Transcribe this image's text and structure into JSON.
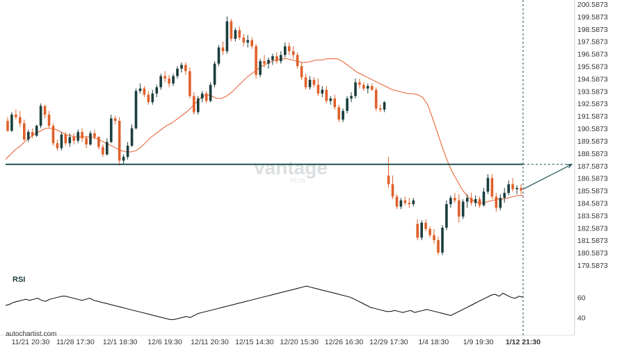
{
  "colors": {
    "up": "#1a3d3d",
    "down": "#e0602a",
    "ma": "#e8734a",
    "level": "#1e4f52",
    "rsi": "#000000",
    "axis": "#333333",
    "watermark": "#d8dcde"
  },
  "watermark": {
    "text": "vantage",
    "sub": "PLUS"
  },
  "source_label": "autochartist.com",
  "chart_data": [
    {
      "type": "candlestick",
      "price_ticks": [
        "200.5873",
        "199.5873",
        "198.5873",
        "197.5873",
        "196.5873",
        "195.5873",
        "194.5873",
        "193.5873",
        "192.5873",
        "191.5873",
        "190.5873",
        "189.5873",
        "188.5873",
        "187.5873",
        "186.5873",
        "185.5873",
        "184.5873",
        "183.5873",
        "182.5873",
        "181.5873",
        "180.5873",
        "179.5873"
      ],
      "ylim": [
        179.0,
        200.6
      ],
      "x_ticks": [
        "11/21 20:30",
        "11/28 17:30",
        "12/1 18:30",
        "12/6 19:30",
        "12/11 20:30",
        "12/15 14:30",
        "12/20 15:30",
        "12/26 16:30",
        "12/29 17:30",
        "1/4 18:30",
        "1/9 19:30",
        "1/12 21:30"
      ],
      "support_resistance_level": 187.7,
      "projection": {
        "from": 185.7,
        "to": 187.7
      },
      "moving_average": [
        188.1,
        188.5,
        188.9,
        189.2,
        189.6,
        189.9,
        190.2,
        190.4,
        190.6,
        190.6,
        190.5,
        190.3,
        190.1,
        190.0,
        189.9,
        189.9,
        189.9,
        189.9,
        189.8,
        189.6,
        189.4,
        189.2,
        189.0,
        188.8,
        188.7,
        188.7,
        188.8,
        189.1,
        189.5,
        189.9,
        190.2,
        190.5,
        190.8,
        191.0,
        191.3,
        191.6,
        191.9,
        192.3,
        192.7,
        193.1,
        193.3,
        193.2,
        193.0,
        193.0,
        193.2,
        193.5,
        193.9,
        194.3,
        194.7,
        195.0,
        195.3,
        195.6,
        195.8,
        196.0,
        196.1,
        196.2,
        196.2,
        196.1,
        196.0,
        195.9,
        195.9,
        196.0,
        196.1,
        196.1,
        196.2,
        196.2,
        196.2,
        196.0,
        195.7,
        195.4,
        195.1,
        194.9,
        194.7,
        194.5,
        194.3,
        194.1,
        193.9,
        193.7,
        193.6,
        193.5,
        193.4,
        193.4,
        193.3,
        193.1,
        192.5,
        191.4,
        190.2,
        189.0,
        187.9,
        187.0,
        186.3,
        185.6,
        185.1,
        184.8,
        184.6,
        184.6,
        184.7,
        184.8,
        184.9,
        184.9,
        185.0,
        185.1,
        185.2,
        185.2
      ],
      "candles": [
        [
          191.2,
          191.5,
          190.3,
          190.4
        ],
        [
          190.4,
          191.9,
          190.3,
          191.7
        ],
        [
          191.7,
          192.1,
          191.3,
          191.5
        ],
        [
          191.5,
          192.0,
          190.7,
          191.0
        ],
        [
          191.0,
          191.3,
          189.6,
          189.7
        ],
        [
          189.7,
          190.5,
          189.5,
          190.3
        ],
        [
          190.3,
          190.6,
          189.8,
          190.0
        ],
        [
          190.0,
          190.9,
          189.9,
          190.8
        ],
        [
          190.8,
          192.6,
          190.6,
          192.4
        ],
        [
          192.4,
          192.5,
          191.4,
          191.7
        ],
        [
          191.7,
          192.0,
          190.6,
          190.8
        ],
        [
          190.8,
          191.0,
          189.2,
          189.4
        ],
        [
          189.4,
          189.7,
          188.8,
          189.0
        ],
        [
          189.0,
          190.3,
          188.8,
          190.1
        ],
        [
          190.1,
          190.3,
          189.2,
          189.4
        ],
        [
          189.4,
          190.2,
          189.1,
          189.9
        ],
        [
          189.9,
          190.2,
          189.3,
          189.6
        ],
        [
          189.6,
          190.5,
          189.4,
          190.3
        ],
        [
          190.3,
          190.6,
          189.5,
          189.8
        ],
        [
          189.8,
          190.0,
          189.0,
          189.3
        ],
        [
          189.3,
          190.4,
          189.2,
          190.2
        ],
        [
          190.2,
          190.5,
          189.7,
          189.9
        ],
        [
          189.9,
          190.0,
          188.9,
          189.1
        ],
        [
          189.1,
          189.3,
          188.3,
          188.5
        ],
        [
          188.5,
          189.8,
          188.4,
          189.5
        ],
        [
          189.5,
          191.7,
          189.4,
          191.4
        ],
        [
          191.4,
          191.6,
          190.9,
          191.2
        ],
        [
          191.2,
          191.5,
          187.6,
          188.0
        ],
        [
          188.0,
          188.5,
          187.7,
          188.3
        ],
        [
          188.3,
          189.5,
          188.1,
          189.2
        ],
        [
          189.2,
          190.9,
          189.1,
          190.6
        ],
        [
          190.6,
          193.8,
          190.5,
          193.6
        ],
        [
          193.6,
          194.2,
          193.4,
          193.8
        ],
        [
          193.8,
          194.0,
          193.1,
          193.3
        ],
        [
          193.3,
          193.6,
          192.5,
          192.7
        ],
        [
          192.7,
          193.7,
          192.5,
          193.4
        ],
        [
          193.4,
          194.1,
          193.1,
          193.9
        ],
        [
          193.9,
          195.0,
          193.7,
          194.8
        ],
        [
          194.8,
          195.2,
          194.3,
          194.6
        ],
        [
          194.6,
          194.9,
          193.9,
          194.2
        ],
        [
          194.2,
          195.0,
          194.0,
          194.8
        ],
        [
          194.8,
          195.6,
          194.6,
          195.4
        ],
        [
          195.4,
          195.9,
          195.1,
          195.7
        ],
        [
          195.7,
          195.9,
          194.9,
          195.2
        ],
        [
          195.2,
          195.5,
          193.0,
          193.2
        ],
        [
          193.2,
          193.5,
          191.7,
          191.9
        ],
        [
          191.9,
          193.2,
          191.7,
          193.0
        ],
        [
          193.0,
          193.6,
          192.7,
          193.4
        ],
        [
          193.4,
          193.6,
          192.6,
          192.8
        ],
        [
          192.8,
          194.3,
          192.7,
          194.1
        ],
        [
          194.1,
          196.0,
          193.9,
          195.8
        ],
        [
          195.8,
          197.3,
          195.6,
          197.1
        ],
        [
          197.1,
          197.6,
          196.5,
          196.8
        ],
        [
          196.8,
          199.6,
          196.6,
          199.2
        ],
        [
          199.2,
          199.4,
          197.6,
          197.8
        ],
        [
          197.8,
          198.7,
          197.6,
          198.5
        ],
        [
          198.5,
          198.8,
          197.7,
          197.9
        ],
        [
          197.9,
          198.2,
          197.2,
          197.5
        ],
        [
          197.5,
          198.1,
          197.1,
          197.7
        ],
        [
          197.7,
          197.9,
          197.0,
          197.2
        ],
        [
          197.2,
          197.4,
          194.6,
          194.9
        ],
        [
          194.9,
          196.2,
          194.7,
          196.0
        ],
        [
          196.0,
          196.5,
          195.5,
          195.8
        ],
        [
          195.8,
          196.3,
          195.4,
          196.1
        ],
        [
          196.1,
          196.6,
          195.7,
          196.4
        ],
        [
          196.4,
          196.7,
          195.8,
          196.0
        ],
        [
          196.0,
          196.8,
          195.8,
          196.5
        ],
        [
          196.5,
          197.5,
          196.3,
          197.2
        ],
        [
          197.2,
          197.5,
          196.5,
          196.8
        ],
        [
          196.8,
          197.2,
          196.2,
          196.5
        ],
        [
          196.5,
          196.7,
          195.4,
          195.6
        ],
        [
          195.6,
          195.9,
          194.5,
          194.7
        ],
        [
          194.7,
          195.0,
          193.7,
          193.9
        ],
        [
          193.9,
          194.8,
          193.7,
          194.5
        ],
        [
          194.5,
          194.7,
          193.9,
          194.1
        ],
        [
          194.1,
          194.6,
          193.2,
          193.4
        ],
        [
          193.4,
          194.0,
          193.1,
          193.7
        ],
        [
          193.7,
          194.0,
          192.6,
          192.8
        ],
        [
          192.8,
          193.2,
          192.5,
          193.0
        ],
        [
          193.0,
          193.3,
          192.1,
          192.3
        ],
        [
          192.3,
          192.5,
          191.1,
          191.3
        ],
        [
          191.3,
          192.2,
          191.1,
          192.0
        ],
        [
          192.0,
          193.2,
          191.8,
          193.0
        ],
        [
          193.0,
          193.5,
          192.7,
          193.2
        ],
        [
          193.2,
          194.6,
          193.0,
          194.3
        ],
        [
          194.3,
          194.6,
          193.8,
          194.1
        ],
        [
          194.1,
          194.3,
          193.6,
          193.8
        ],
        [
          193.8,
          194.2,
          193.4,
          194.0
        ],
        [
          194.0,
          194.2,
          193.6,
          193.7
        ],
        [
          193.7,
          193.9,
          192.0,
          192.2
        ],
        [
          192.2,
          192.5,
          191.9,
          192.1
        ],
        [
          192.1,
          192.8,
          191.9,
          192.7
        ],
        [
          186.8,
          188.3,
          185.8,
          186.1
        ],
        [
          186.1,
          186.8,
          184.9,
          185.1
        ],
        [
          185.1,
          185.3,
          184.1,
          184.3
        ],
        [
          184.3,
          185.0,
          184.1,
          184.8
        ],
        [
          184.8,
          185.1,
          184.4,
          184.6
        ],
        [
          184.6,
          185.0,
          184.2,
          184.5
        ],
        [
          184.5,
          185.0,
          184.3,
          184.8
        ],
        [
          182.9,
          183.3,
          181.6,
          181.8
        ],
        [
          181.8,
          183.2,
          181.6,
          183.0
        ],
        [
          183.0,
          183.3,
          182.3,
          182.5
        ],
        [
          182.5,
          182.7,
          181.8,
          182.0
        ],
        [
          182.0,
          182.5,
          181.3,
          181.6
        ],
        [
          181.6,
          181.9,
          180.4,
          180.6
        ],
        [
          180.6,
          182.8,
          180.4,
          182.6
        ],
        [
          182.6,
          184.8,
          182.4,
          184.5
        ],
        [
          184.5,
          185.2,
          184.2,
          185.0
        ],
        [
          185.0,
          185.4,
          184.6,
          184.8
        ],
        [
          184.8,
          185.3,
          183.0,
          183.5
        ],
        [
          183.5,
          184.9,
          183.3,
          184.7
        ],
        [
          184.7,
          185.3,
          184.2,
          185.0
        ],
        [
          185.0,
          185.4,
          184.4,
          184.6
        ],
        [
          184.6,
          185.2,
          184.3,
          184.9
        ],
        [
          184.9,
          185.1,
          184.2,
          184.4
        ],
        [
          184.4,
          185.8,
          184.3,
          185.5
        ],
        [
          185.5,
          186.9,
          185.3,
          186.6
        ],
        [
          186.6,
          186.9,
          184.9,
          185.1
        ],
        [
          185.1,
          185.4,
          183.9,
          184.2
        ],
        [
          184.2,
          185.3,
          184.0,
          185.0
        ],
        [
          185.0,
          185.8,
          184.6,
          185.4
        ],
        [
          185.4,
          186.4,
          185.2,
          186.1
        ],
        [
          186.1,
          186.6,
          185.5,
          185.7
        ],
        [
          185.7,
          186.0,
          185.3,
          185.8
        ],
        [
          185.8,
          186.1,
          185.3,
          185.6
        ]
      ]
    },
    {
      "type": "line",
      "title": "RSI",
      "ylim": [
        28,
        78
      ],
      "y_ticks": [
        "60",
        "40"
      ],
      "y_tick_values": [
        60,
        40
      ],
      "values": [
        52,
        53,
        55,
        56,
        57,
        58,
        57,
        58,
        59,
        57,
        56,
        58,
        59,
        60,
        61,
        61,
        60,
        59,
        58,
        57,
        58,
        59,
        57,
        56,
        55,
        54,
        53,
        52,
        51,
        50,
        49,
        48,
        47,
        46,
        45,
        44,
        43,
        42,
        41,
        40,
        39,
        38,
        38,
        39,
        40,
        41,
        40,
        42,
        44,
        45,
        46,
        47,
        48,
        49,
        50,
        51,
        52,
        53,
        54,
        55,
        56,
        57,
        58,
        59,
        60,
        61,
        62,
        63,
        64,
        65,
        66,
        67,
        68,
        69,
        70,
        71,
        70,
        69,
        68,
        67,
        66,
        65,
        64,
        63,
        62,
        61,
        60,
        58,
        56,
        54,
        52,
        50,
        49,
        48,
        47,
        46,
        46,
        47,
        46,
        45,
        46,
        47,
        45,
        46,
        47,
        48,
        47,
        46,
        45,
        44,
        43,
        42,
        44,
        46,
        48,
        50,
        52,
        54,
        56,
        58,
        60,
        62,
        63,
        61,
        64,
        62,
        60,
        59,
        61,
        60
      ]
    }
  ]
}
